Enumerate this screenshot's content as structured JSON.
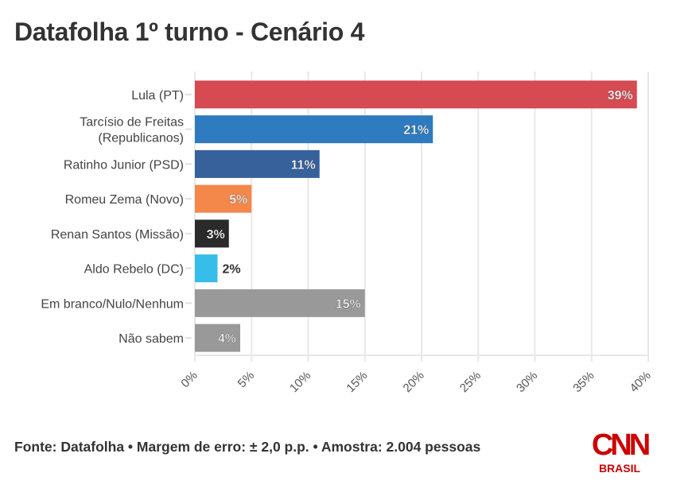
{
  "title": "Datafolha 1º turno - Cenário 4",
  "chart_data": {
    "type": "bar",
    "orientation": "horizontal",
    "title": "Datafolha 1º turno - Cenário 4",
    "xlabel": "",
    "ylabel": "",
    "xlim": [
      0,
      40
    ],
    "grid": true,
    "x_ticks": [
      "0%",
      "5%",
      "10%",
      "15%",
      "20%",
      "25%",
      "30%",
      "35%",
      "40%"
    ],
    "x_tick_values": [
      0,
      5,
      10,
      15,
      20,
      25,
      30,
      35,
      40
    ],
    "categories": [
      [
        "Lula (PT)"
      ],
      [
        "Tarcísio de Freitas",
        "(Republicanos)"
      ],
      [
        "Ratinho Junior (PSD)"
      ],
      [
        "Romeu Zema (Novo)"
      ],
      [
        "Renan Santos (Missão)"
      ],
      [
        "Aldo Rebelo (DC)"
      ],
      [
        "Em branco/Nulo/Nenhum"
      ],
      [
        "Não sabem"
      ]
    ],
    "values": [
      39,
      21,
      11,
      5,
      3,
      2,
      15,
      4
    ],
    "data_labels": [
      "39%",
      "21%",
      "11%",
      "5%",
      "3%",
      "2%",
      "15%",
      "4%"
    ],
    "colors": [
      "#d64a52",
      "#2e7bbf",
      "#36619b",
      "#f4874a",
      "#2a2a2a",
      "#36bde9",
      "#999999",
      "#999999"
    ]
  },
  "footer": {
    "source": "Fonte: Datafolha • Margem de erro: ± 2,0 p.p. • Amostra: 2.004 pessoas"
  },
  "logo": {
    "brand": "CNN",
    "sub": "BRASIL",
    "color": "#cc0000"
  }
}
